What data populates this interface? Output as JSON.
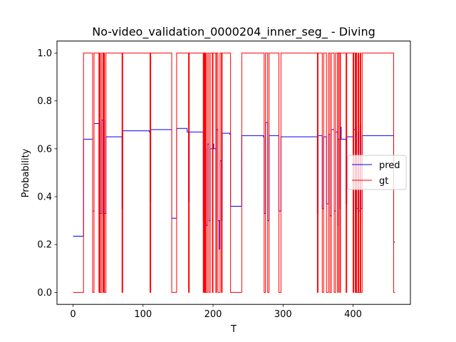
{
  "chart_data": {
    "type": "line",
    "title": "No-video_validation_0000204_inner_seg_ - Diving",
    "xlabel": "T",
    "ylabel": "Probability",
    "xlim": [
      -22.9,
      481.9
    ],
    "ylim": [
      -0.05,
      1.05
    ],
    "x_ticks": [
      0,
      100,
      200,
      300,
      400
    ],
    "y_ticks": [
      0.0,
      0.2,
      0.4,
      0.6,
      0.8,
      1.0
    ],
    "x_tick_labels": [
      "0",
      "100",
      "200",
      "300",
      "400"
    ],
    "y_tick_labels": [
      "0.0",
      "0.2",
      "0.4",
      "0.6",
      "0.8",
      "1.0"
    ],
    "grid": false,
    "legend_position": "center-right",
    "series": [
      {
        "name": "pred",
        "color": "#0000ff",
        "step": "post",
        "x": [
          0,
          15,
          28,
          30,
          37,
          38,
          39,
          41,
          43,
          44,
          45,
          47,
          70,
          71,
          72,
          109,
          110,
          111,
          141,
          142,
          148,
          149,
          150,
          163,
          165,
          166,
          184,
          186,
          187,
          188,
          189,
          190,
          192,
          194,
          196,
          199,
          200,
          201,
          204,
          205,
          207,
          209,
          210,
          212,
          213,
          224,
          225,
          239,
          241,
          272,
          273,
          275,
          278,
          280,
          292,
          294,
          297,
          348,
          349,
          350,
          356,
          358,
          362,
          365,
          367,
          369,
          373,
          375,
          378,
          379,
          381,
          382,
          383,
          390,
          391,
          398,
          400,
          401,
          403,
          404,
          405,
          407,
          408,
          410,
          411,
          413,
          426,
          427,
          455,
          458,
          460
        ],
        "y": [
          0.235,
          0.64,
          0.34,
          0.705,
          0.33,
          0.71,
          0.33,
          0.72,
          0.32,
          0.72,
          0.33,
          0.65,
          0.35,
          0.675,
          0.675,
          0.67,
          0.38,
          0.68,
          0.31,
          0.31,
          0.685,
          0.685,
          0.685,
          0.67,
          0.38,
          0.67,
          0.67,
          0.3,
          0.77,
          0.3,
          0.6,
          0.28,
          0.62,
          0.3,
          0.6,
          0.3,
          0.62,
          0.6,
          0.31,
          0.68,
          0.3,
          0.18,
          0.55,
          0.3,
          0.665,
          0.66,
          0.36,
          0.36,
          0.655,
          0.65,
          0.33,
          0.71,
          0.3,
          0.655,
          0.655,
          0.34,
          0.65,
          0.65,
          0.33,
          0.655,
          0.35,
          0.65,
          0.37,
          0.66,
          0.32,
          0.68,
          0.34,
          0.67,
          0.28,
          0.64,
          0.35,
          0.69,
          0.64,
          0.37,
          0.65,
          0.65,
          0.36,
          0.68,
          0.34,
          0.69,
          0.35,
          0.67,
          0.34,
          0.7,
          0.35,
          0.655,
          0.655,
          0.655,
          0.655,
          0.21,
          0.21
        ]
      },
      {
        "name": "gt",
        "color": "#ff0000",
        "step": "post",
        "x": [
          0,
          15,
          28,
          30,
          37,
          38,
          39,
          41,
          43,
          44,
          45,
          47,
          70,
          71,
          72,
          109,
          110,
          111,
          141,
          142,
          148,
          149,
          150,
          163,
          165,
          166,
          184,
          186,
          187,
          188,
          189,
          190,
          192,
          194,
          196,
          199,
          200,
          201,
          204,
          205,
          207,
          209,
          210,
          212,
          213,
          224,
          225,
          239,
          241,
          272,
          273,
          275,
          278,
          280,
          292,
          294,
          297,
          348,
          349,
          350,
          356,
          358,
          362,
          365,
          367,
          369,
          373,
          375,
          378,
          379,
          381,
          382,
          383,
          390,
          391,
          398,
          400,
          401,
          403,
          404,
          405,
          407,
          408,
          410,
          411,
          413,
          426,
          427,
          455,
          458,
          460
        ],
        "y": [
          0,
          1,
          0,
          1,
          0,
          1,
          0,
          1,
          0,
          1,
          0,
          1,
          0,
          1,
          1,
          1,
          0,
          1,
          0,
          0,
          1,
          1,
          1,
          1,
          0,
          1,
          1,
          0,
          1,
          0,
          1,
          0,
          1,
          0,
          1,
          0,
          1,
          1,
          0,
          1,
          0,
          0,
          1,
          0,
          1,
          1,
          0,
          0,
          1,
          1,
          0,
          1,
          0,
          1,
          1,
          0,
          1,
          1,
          0,
          1,
          0,
          1,
          0,
          1,
          0,
          1,
          0,
          1,
          0,
          1,
          0,
          1,
          1,
          0,
          1,
          1,
          0,
          1,
          0,
          1,
          0,
          1,
          0,
          1,
          0,
          1,
          1,
          1,
          1,
          0,
          0
        ]
      }
    ]
  }
}
